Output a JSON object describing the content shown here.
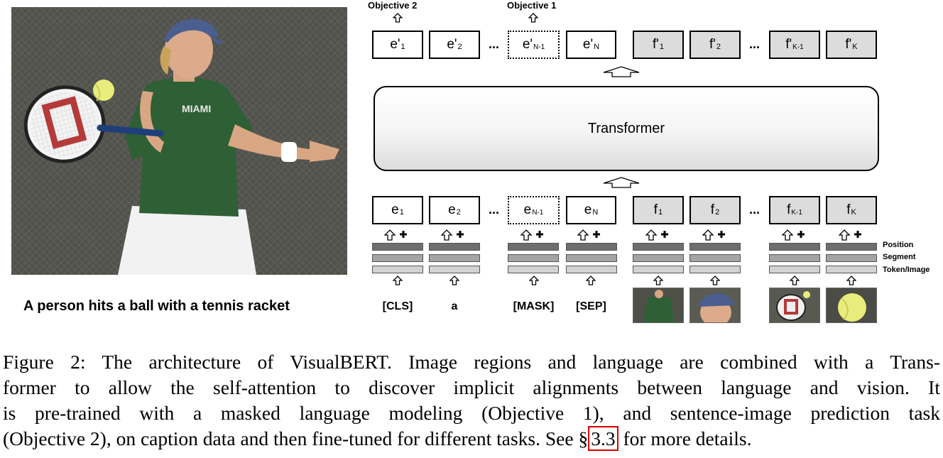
{
  "photo": {
    "caption": "A person hits a ball with a tennis racket",
    "shirt_text": "MIAMI"
  },
  "diagram": {
    "objectives": [
      {
        "label": "Objective 2"
      },
      {
        "label": "Objective 1"
      }
    ],
    "output_text_tokens": [
      {
        "base": "e'",
        "sub": "1",
        "masked": false
      },
      {
        "base": "e'",
        "sub": "2",
        "masked": false
      },
      {
        "base": "e'",
        "sub": "N-1",
        "masked": true
      },
      {
        "base": "e'",
        "sub": "N",
        "masked": false
      }
    ],
    "output_image_tokens": [
      {
        "base": "f'",
        "sub": "1"
      },
      {
        "base": "f'",
        "sub": "2"
      },
      {
        "base": "f'",
        "sub": "K-1"
      },
      {
        "base": "f'",
        "sub": "K"
      }
    ],
    "ellipsis": "...",
    "transformer_label": "Transformer",
    "input_text_tokens": [
      {
        "base": "e",
        "sub": "1",
        "masked": false
      },
      {
        "base": "e",
        "sub": "2",
        "masked": false
      },
      {
        "base": "e",
        "sub": "N-1",
        "masked": true
      },
      {
        "base": "e",
        "sub": "N",
        "masked": false
      }
    ],
    "input_image_tokens": [
      {
        "base": "f",
        "sub": "1"
      },
      {
        "base": "f",
        "sub": "2"
      },
      {
        "base": "f",
        "sub": "K-1"
      },
      {
        "base": "f",
        "sub": "K"
      }
    ],
    "embedding_labels": {
      "position": "Position",
      "segment": "Segment",
      "token_image": "Token/Image"
    },
    "words": [
      "[CLS]",
      "a",
      "[MASK]",
      "[SEP]"
    ]
  },
  "caption": {
    "lines": [
      "Figure 2: The architecture of VisualBERT. Image regions and language are combined with a Trans-",
      "former to allow the self-attention to discover implicit alignments between language and vision. It",
      "is pre-trained with a masked language modeling (Objective 1), and sentence-image prediction task"
    ],
    "last_line_before": "(Objective 2), on caption data and then fine-tuned for different tasks. See §",
    "ref": "3.3",
    "last_line_after": " for more details."
  }
}
